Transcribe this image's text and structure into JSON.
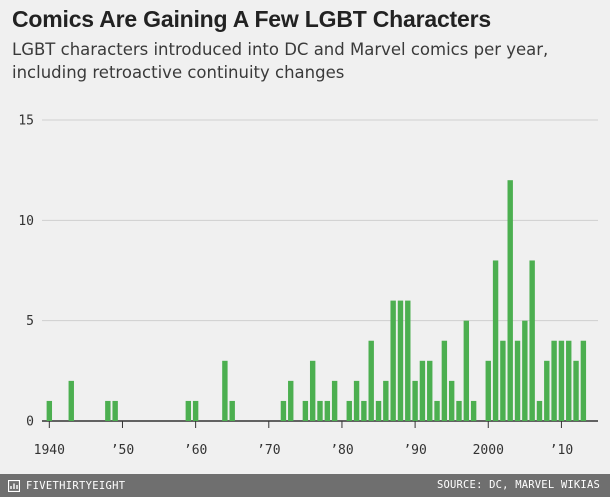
{
  "header": {
    "title": "Comics Are Gaining A Few LGBT Characters",
    "subtitle": "LGBT characters introduced into DC and Marvel comics per year, including retroactive continuity changes"
  },
  "footer": {
    "brand": "FIVETHIRTYEIGHT",
    "source": "SOURCE: DC, MARVEL WIKIAS"
  },
  "colors": {
    "bar": "#4caf50",
    "grid": "#cfcfcf",
    "baseline": "#333333",
    "background": "#f0f0f0",
    "footer": "#6f6f6f"
  },
  "chart_data": {
    "type": "bar",
    "title": "Comics Are Gaining A Few LGBT Characters",
    "subtitle": "LGBT characters introduced into DC and Marvel comics per year, including retroactive continuity changes",
    "xlabel": "",
    "ylabel": "",
    "xlim": [
      1939,
      2015
    ],
    "ylim": [
      0,
      15
    ],
    "y_ticks": [
      0,
      5,
      10,
      15
    ],
    "y_tick_labels": [
      "0",
      "5",
      "10",
      "15"
    ],
    "x_ticks": [
      1940,
      1950,
      1960,
      1970,
      1980,
      1990,
      2000,
      2010
    ],
    "x_tick_labels": [
      "1940",
      "’50",
      "’60",
      "’70",
      "’80",
      "’90",
      "2000",
      "’10"
    ],
    "grid": true,
    "series": [
      {
        "x": [
          1940,
          1943,
          1948,
          1949,
          1959,
          1960,
          1964,
          1965,
          1972,
          1973,
          1975,
          1976,
          1977,
          1978,
          1979,
          1981,
          1982,
          1983,
          1984,
          1985,
          1986,
          1987,
          1988,
          1989,
          1990,
          1991,
          1992,
          1993,
          1994,
          1995,
          1996,
          1997,
          1998,
          2000,
          2001,
          2002,
          2003,
          2004,
          2005,
          2006,
          2007,
          2008,
          2009,
          2010,
          2011,
          2012,
          2013
        ],
        "values": [
          1,
          2,
          1,
          1,
          1,
          1,
          3,
          1,
          1,
          2,
          1,
          3,
          1,
          1,
          2,
          1,
          2,
          1,
          4,
          1,
          2,
          6,
          6,
          6,
          2,
          3,
          3,
          1,
          4,
          2,
          1,
          5,
          1,
          3,
          8,
          4,
          12,
          4,
          5,
          8,
          1,
          3,
          4,
          4,
          4,
          3,
          4
        ]
      }
    ]
  }
}
